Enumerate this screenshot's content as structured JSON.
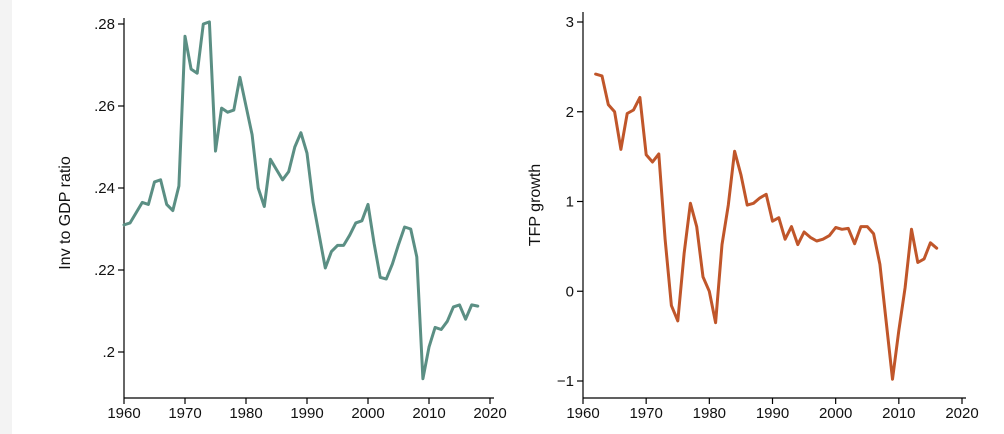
{
  "chart_data": [
    {
      "type": "line",
      "ylabel": "Inv to GDP ratio",
      "xlabel": "",
      "xlim": [
        1960,
        2020
      ],
      "ylim": [
        0.19,
        0.285
      ],
      "x_ticks": [
        1960,
        1970,
        1980,
        1990,
        2000,
        2010,
        2020
      ],
      "x_tick_labels": [
        "1960",
        "1970",
        "1980",
        "1990",
        "2000",
        "2010",
        "2020"
      ],
      "y_ticks": [
        0.2,
        0.22,
        0.24,
        0.26,
        0.28
      ],
      "y_tick_labels": [
        ".2",
        ".22",
        ".24",
        ".26",
        ".28"
      ],
      "grid": false,
      "color": "#5b8f84",
      "series": [
        {
          "x": [
            1960,
            1961,
            1962,
            1963,
            1964,
            1965,
            1966,
            1967,
            1968,
            1969,
            1970,
            1971,
            1972,
            1973,
            1974,
            1975,
            1976,
            1977,
            1978,
            1979,
            1980,
            1981,
            1982,
            1983,
            1984,
            1985,
            1986,
            1987,
            1988,
            1989,
            1990,
            1991,
            1992,
            1993,
            1994,
            1995,
            1996,
            1997,
            1998,
            1999,
            2000,
            2001,
            2002,
            2003,
            2004,
            2005,
            2006,
            2007,
            2008,
            2009,
            2010,
            2011,
            2012,
            2013,
            2014,
            2015,
            2016,
            2017,
            2018
          ],
          "y": [
            0.231,
            0.2315,
            0.234,
            0.2365,
            0.236,
            0.2415,
            0.242,
            0.236,
            0.2345,
            0.2405,
            0.277,
            0.269,
            0.268,
            0.28,
            0.2805,
            0.249,
            0.2595,
            0.2585,
            0.259,
            0.267,
            0.26,
            0.253,
            0.24,
            0.2355,
            0.247,
            0.2445,
            0.242,
            0.244,
            0.25,
            0.2535,
            0.2485,
            0.2365,
            0.2285,
            0.2205,
            0.2245,
            0.226,
            0.226,
            0.2285,
            0.2315,
            0.232,
            0.236,
            0.2265,
            0.2182,
            0.2178,
            0.2215,
            0.2262,
            0.2305,
            0.23,
            0.2232,
            0.1935,
            0.2012,
            0.206,
            0.2055,
            0.2075,
            0.211,
            0.2115,
            0.208,
            0.2115,
            0.2112
          ]
        }
      ]
    },
    {
      "type": "line",
      "ylabel": "TFP growth",
      "xlabel": "",
      "xlim": [
        1960,
        2020
      ],
      "ylim": [
        -1.05,
        3.1
      ],
      "x_ticks": [
        1960,
        1970,
        1980,
        1990,
        2000,
        2010,
        2020
      ],
      "x_tick_labels": [
        "1960",
        "1970",
        "1980",
        "1990",
        "2000",
        "2010",
        "2020"
      ],
      "y_ticks": [
        -1,
        0,
        1,
        2,
        3
      ],
      "y_tick_labels": [
        "−1",
        "0",
        "1",
        "2",
        "3"
      ],
      "grid": false,
      "color": "#c0562a",
      "series": [
        {
          "x": [
            1962,
            1963,
            1964,
            1965,
            1966,
            1967,
            1968,
            1969,
            1970,
            1971,
            1972,
            1973,
            1974,
            1975,
            1976,
            1977,
            1978,
            1979,
            1980,
            1981,
            1982,
            1983,
            1984,
            1985,
            1986,
            1987,
            1988,
            1989,
            1990,
            1991,
            1992,
            1993,
            1994,
            1995,
            1996,
            1997,
            1998,
            1999,
            2000,
            2001,
            2002,
            2003,
            2004,
            2005,
            2006,
            2007,
            2008,
            2009,
            2010,
            2011,
            2012,
            2013,
            2014,
            2015,
            2016
          ],
          "y": [
            2.42,
            2.4,
            2.08,
            2.0,
            1.58,
            1.98,
            2.02,
            2.16,
            1.52,
            1.44,
            1.53,
            0.58,
            -0.16,
            -0.33,
            0.42,
            0.98,
            0.72,
            0.16,
            0.0,
            -0.35,
            0.52,
            0.96,
            1.56,
            1.3,
            0.96,
            0.98,
            1.04,
            1.08,
            0.78,
            0.82,
            0.58,
            0.72,
            0.52,
            0.66,
            0.6,
            0.56,
            0.58,
            0.62,
            0.71,
            0.69,
            0.7,
            0.53,
            0.72,
            0.72,
            0.64,
            0.3,
            -0.34,
            -0.98,
            -0.44,
            0.04,
            0.69,
            0.32,
            0.36,
            0.54,
            0.48
          ]
        }
      ]
    }
  ]
}
